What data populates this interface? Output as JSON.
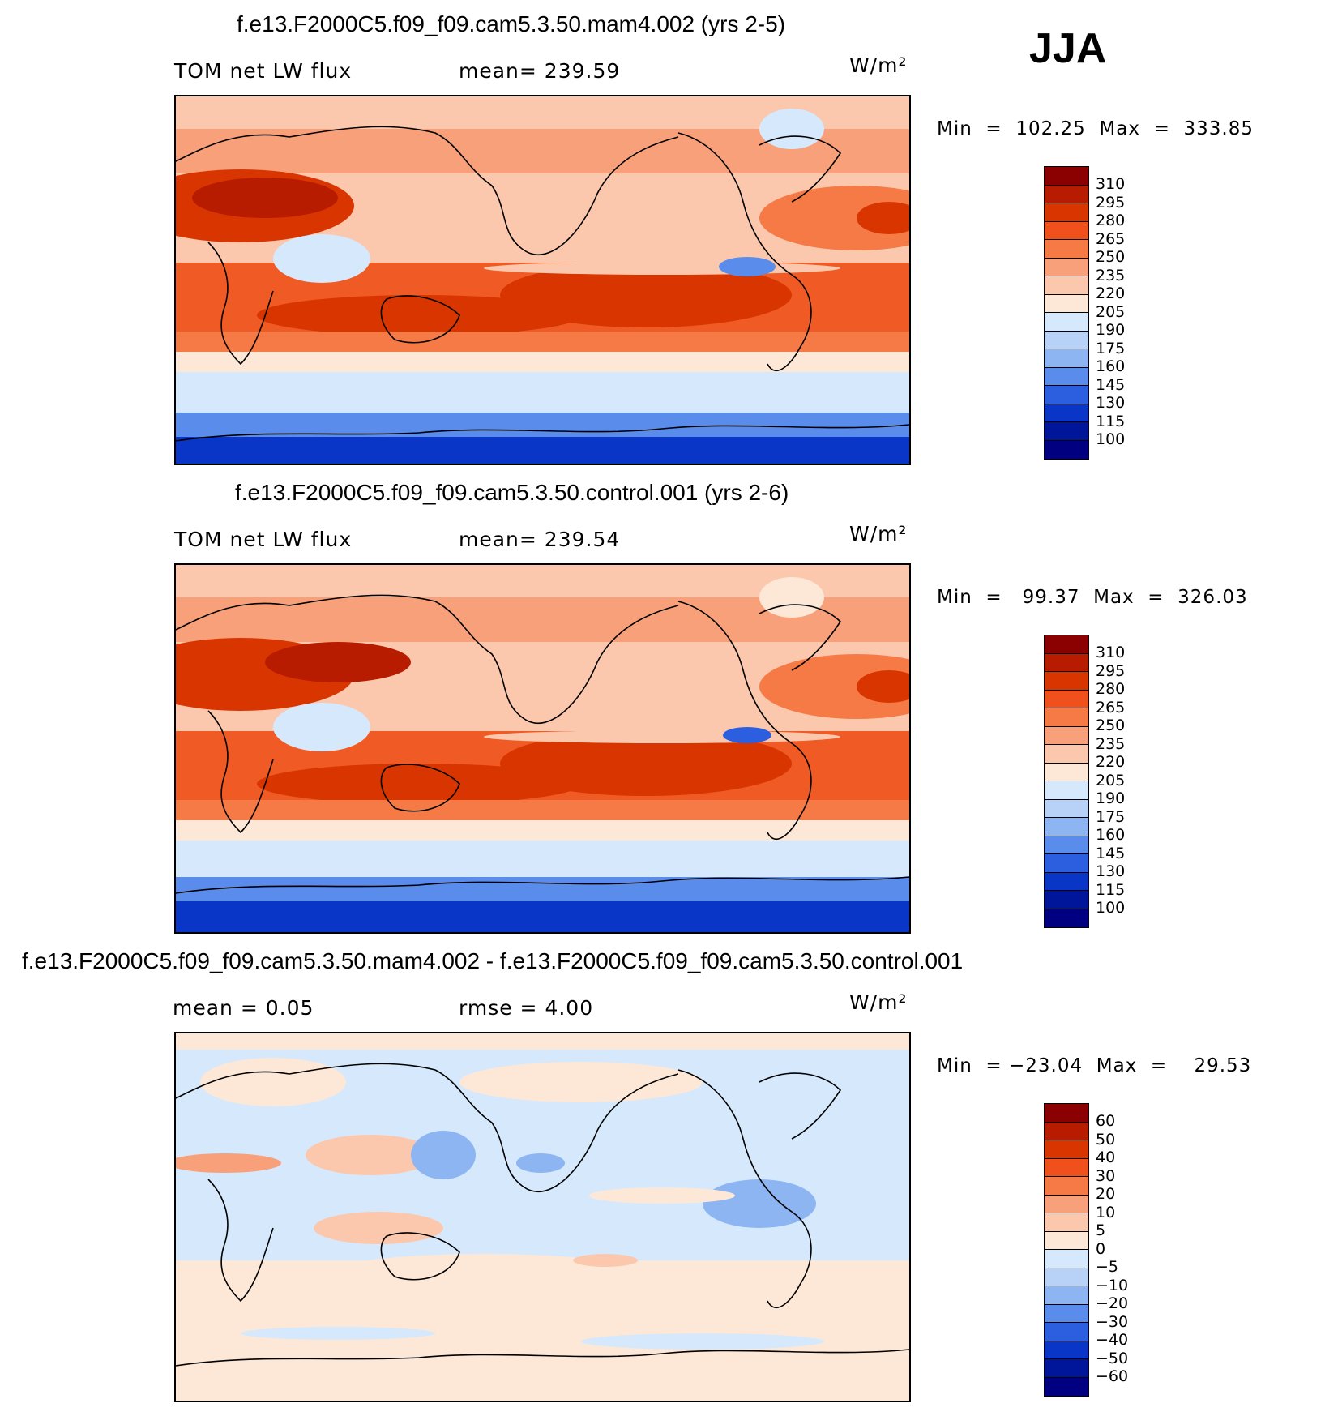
{
  "season": "JJA",
  "units": "W/m²",
  "panels": [
    {
      "title": "f.e13.F2000C5.f09_f09.cam5.3.50.mam4.002 (yrs 2-5)",
      "left_label": "TOM net LW flux",
      "mid_label": "mean= 239.59",
      "stats": "Min  =  102.25  Max  =  333.85",
      "colorbar_levels": [
        "310",
        "295",
        "280",
        "265",
        "250",
        "235",
        "220",
        "205",
        "190",
        "175",
        "160",
        "145",
        "130",
        "115",
        "100"
      ],
      "colorbar_colors": [
        "#8b0000",
        "#b81c00",
        "#d83500",
        "#f0501c",
        "#f57a45",
        "#f7a07a",
        "#fbc8ad",
        "#fde8d8",
        "#d6e8fb",
        "#b8d2f7",
        "#8cb5f2",
        "#5a8cec",
        "#2c5ee0",
        "#0a36c8",
        "#00169a",
        "#000080"
      ]
    },
    {
      "title": "f.e13.F2000C5.f09_f09.cam5.3.50.control.001 (yrs 2-6)",
      "left_label": "TOM net LW flux",
      "mid_label": "mean= 239.54",
      "stats": "Min  =   99.37  Max  =  326.03",
      "colorbar_levels": [
        "310",
        "295",
        "280",
        "265",
        "250",
        "235",
        "220",
        "205",
        "190",
        "175",
        "160",
        "145",
        "130",
        "115",
        "100"
      ],
      "colorbar_colors": [
        "#8b0000",
        "#b81c00",
        "#d83500",
        "#f0501c",
        "#f57a45",
        "#f7a07a",
        "#fbc8ad",
        "#fde8d8",
        "#d6e8fb",
        "#b8d2f7",
        "#8cb5f2",
        "#5a8cec",
        "#2c5ee0",
        "#0a36c8",
        "#00169a",
        "#000080"
      ]
    },
    {
      "title": "f.e13.F2000C5.f09_f09.cam5.3.50.mam4.002 - f.e13.F2000C5.f09_f09.cam5.3.50.control.001",
      "left_label": "mean =     0.05",
      "mid_label": "rmse =     4.00",
      "stats": "Min  = −23.04  Max  =    29.53",
      "colorbar_levels": [
        "60",
        "50",
        "40",
        "30",
        "20",
        "10",
        "5",
        "0",
        "−5",
        "−10",
        "−20",
        "−30",
        "−40",
        "−50",
        "−60"
      ],
      "colorbar_colors": [
        "#8b0000",
        "#b81c00",
        "#d83500",
        "#f0501c",
        "#f57a45",
        "#f7a07a",
        "#fbc8ad",
        "#fde8d8",
        "#d6e8fb",
        "#b8d2f7",
        "#8cb5f2",
        "#5a8cec",
        "#2c5ee0",
        "#0a36c8",
        "#00169a",
        "#000080"
      ]
    }
  ]
}
